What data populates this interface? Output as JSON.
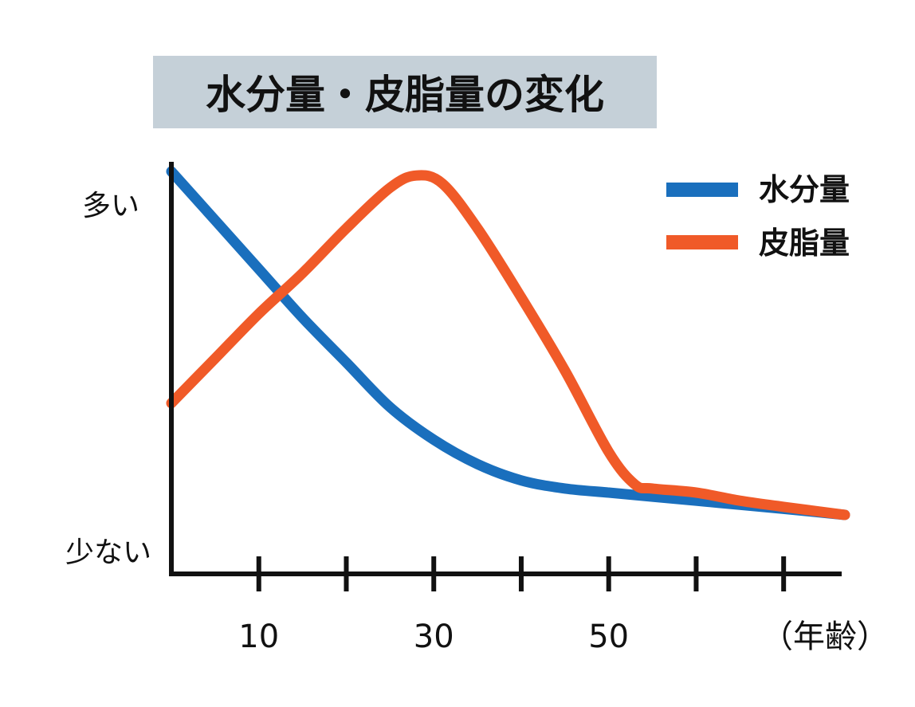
{
  "chart_data": {
    "type": "line",
    "title": "水分量・皮脂量の変化",
    "colors": {
      "title_bg": "#c5d0d8",
      "axis": "#111111"
    },
    "y_high_label": "多い",
    "y_low_label": "少ない",
    "x_unit_label": "（年齢）",
    "xlim": [
      0,
      77
    ],
    "ylim": [
      0,
      100
    ],
    "x_ticks": [
      10,
      20,
      30,
      40,
      50,
      60,
      70
    ],
    "x_tick_labels": [
      {
        "value": 10,
        "label": "10"
      },
      {
        "value": 30,
        "label": "30"
      },
      {
        "value": 50,
        "label": "50"
      }
    ],
    "legend_position": "top-right",
    "series": [
      {
        "name": "水分量",
        "color": "#1a6fbd",
        "points": [
          [
            0,
            99
          ],
          [
            5,
            87
          ],
          [
            10,
            75
          ],
          [
            15,
            63
          ],
          [
            20,
            52
          ],
          [
            25,
            41
          ],
          [
            30,
            33
          ],
          [
            35,
            27
          ],
          [
            40,
            23
          ],
          [
            45,
            21
          ],
          [
            50,
            20
          ],
          [
            55,
            19
          ],
          [
            60,
            18
          ],
          [
            65,
            17
          ],
          [
            70,
            16
          ],
          [
            77,
            14.5
          ]
        ]
      },
      {
        "name": "皮脂量",
        "color": "#f05a28",
        "points": [
          [
            0,
            42
          ],
          [
            5,
            53
          ],
          [
            10,
            64
          ],
          [
            15,
            74
          ],
          [
            20,
            85
          ],
          [
            25,
            95
          ],
          [
            28,
            98
          ],
          [
            31,
            96
          ],
          [
            35,
            85
          ],
          [
            40,
            68
          ],
          [
            45,
            50
          ],
          [
            50,
            30
          ],
          [
            53,
            22
          ],
          [
            55,
            21
          ],
          [
            60,
            20
          ],
          [
            65,
            18
          ],
          [
            70,
            16.5
          ],
          [
            77,
            14.5
          ]
        ]
      }
    ]
  }
}
